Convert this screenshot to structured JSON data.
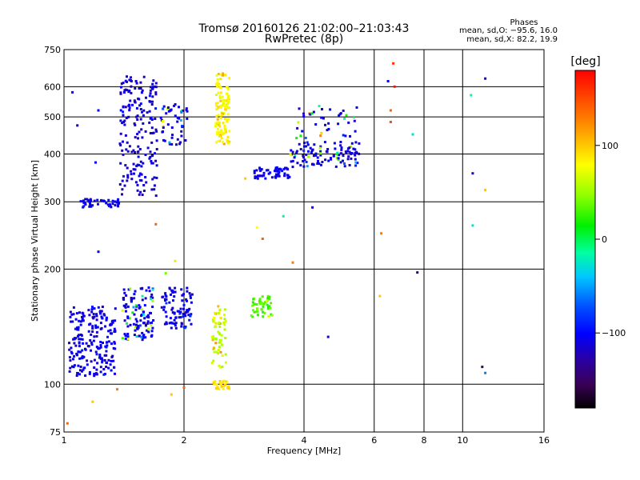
{
  "chart_data": {
    "type": "scatter",
    "title": "Tromsø 20160126 21:02:00–21:03:43",
    "subtitle": "RwPretec (8p)",
    "xlabel": "Frequency [MHz]",
    "ylabel": "Stationary phase Virtual Height [km]",
    "x_scale": "log",
    "y_scale": "log",
    "xlim": [
      1,
      16
    ],
    "ylim": [
      75,
      750
    ],
    "x_ticks": [
      1,
      2,
      4,
      6,
      8,
      10,
      16
    ],
    "x_tick_labels": [
      "1",
      "2",
      "4",
      "6",
      "8",
      "10",
      "16"
    ],
    "y_ticks": [
      75,
      100,
      200,
      300,
      400,
      500,
      600,
      750
    ],
    "y_tick_labels": [
      "75",
      "100",
      "200",
      "300",
      "400",
      "500",
      "600",
      "750"
    ],
    "grid": true,
    "stats": {
      "heading": "Phases",
      "line1": "mean, sd,O: −95.6, 16.0",
      "line2": "mean, sd,X:  82.2, 19.9"
    },
    "colorbar": {
      "label": "[deg]",
      "range": [
        -180,
        180
      ],
      "ticks": [
        -100,
        0,
        100
      ],
      "tick_labels": [
        "−100",
        "0",
        "100"
      ]
    },
    "clusters": [
      {
        "x": [
          1.03,
          1.35
        ],
        "y": [
          105,
          160
        ],
        "phase": [
          -110,
          -90
        ],
        "n": 220
      },
      {
        "x": [
          1.4,
          1.68
        ],
        "y": [
          130,
          180
        ],
        "phase": [
          -110,
          100
        ],
        "n": 120
      },
      {
        "x": [
          1.75,
          2.1
        ],
        "y": [
          140,
          180
        ],
        "phase": [
          -110,
          -80
        ],
        "n": 90
      },
      {
        "x": [
          2.35,
          2.55
        ],
        "y": [
          110,
          160
        ],
        "phase": [
          60,
          130
        ],
        "n": 60
      },
      {
        "x": [
          2.95,
          3.35
        ],
        "y": [
          150,
          170
        ],
        "phase": [
          30,
          80
        ],
        "n": 50
      },
      {
        "x": [
          2.35,
          2.6
        ],
        "y": [
          97,
          102
        ],
        "phase": [
          90,
          110
        ],
        "n": 25
      },
      {
        "x": [
          1.1,
          1.38
        ],
        "y": [
          290,
          305
        ],
        "phase": [
          -110,
          -90
        ],
        "n": 45
      },
      {
        "x": [
          1.38,
          1.72
        ],
        "y": [
          310,
          640
        ],
        "phase": [
          -115,
          -90
        ],
        "n": 190
      },
      {
        "x": [
          1.75,
          2.05
        ],
        "y": [
          420,
          540
        ],
        "phase": [
          -110,
          100
        ],
        "n": 50
      },
      {
        "x": [
          2.4,
          2.6
        ],
        "y": [
          420,
          650
        ],
        "phase": [
          80,
          115
        ],
        "n": 110
      },
      {
        "x": [
          3.0,
          3.7
        ],
        "y": [
          345,
          370
        ],
        "phase": [
          -110,
          -90
        ],
        "n": 60
      },
      {
        "x": [
          3.7,
          5.5
        ],
        "y": [
          370,
          430
        ],
        "phase": [
          -110,
          120
        ],
        "n": 110
      },
      {
        "x": [
          3.8,
          5.5
        ],
        "y": [
          440,
          540
        ],
        "phase": [
          -110,
          140
        ],
        "n": 40
      }
    ],
    "isolated_points": [
      {
        "x": 1.05,
        "y": 580,
        "phase": -110
      },
      {
        "x": 1.08,
        "y": 475,
        "phase": -110
      },
      {
        "x": 1.22,
        "y": 520,
        "phase": -100
      },
      {
        "x": 1.2,
        "y": 380,
        "phase": -100
      },
      {
        "x": 1.52,
        "y": 500,
        "phase": -110
      },
      {
        "x": 1.22,
        "y": 222,
        "phase": -100
      },
      {
        "x": 1.7,
        "y": 262,
        "phase": 140
      },
      {
        "x": 1.8,
        "y": 195,
        "phase": 40
      },
      {
        "x": 1.9,
        "y": 210,
        "phase": 90
      },
      {
        "x": 1.86,
        "y": 94,
        "phase": 100
      },
      {
        "x": 2.0,
        "y": 98,
        "phase": 140
      },
      {
        "x": 1.02,
        "y": 79,
        "phase": 140
      },
      {
        "x": 1.18,
        "y": 90,
        "phase": 100
      },
      {
        "x": 1.36,
        "y": 97,
        "phase": 130
      },
      {
        "x": 2.85,
        "y": 345,
        "phase": 100
      },
      {
        "x": 3.05,
        "y": 257,
        "phase": 80
      },
      {
        "x": 3.15,
        "y": 240,
        "phase": 140
      },
      {
        "x": 3.55,
        "y": 275,
        "phase": -20
      },
      {
        "x": 3.75,
        "y": 208,
        "phase": 130
      },
      {
        "x": 4.2,
        "y": 290,
        "phase": -110
      },
      {
        "x": 4.6,
        "y": 133,
        "phase": -110
      },
      {
        "x": 6.25,
        "y": 248,
        "phase": 130
      },
      {
        "x": 6.2,
        "y": 170,
        "phase": 100
      },
      {
        "x": 6.5,
        "y": 620,
        "phase": -110
      },
      {
        "x": 6.6,
        "y": 520,
        "phase": 140
      },
      {
        "x": 6.75,
        "y": 600,
        "phase": 170
      },
      {
        "x": 6.7,
        "y": 690,
        "phase": 160
      },
      {
        "x": 6.6,
        "y": 485,
        "phase": 150
      },
      {
        "x": 7.5,
        "y": 450,
        "phase": -30
      },
      {
        "x": 7.7,
        "y": 196,
        "phase": -140
      },
      {
        "x": 10.5,
        "y": 570,
        "phase": -20
      },
      {
        "x": 10.6,
        "y": 356,
        "phase": -110
      },
      {
        "x": 10.6,
        "y": 260,
        "phase": -30
      },
      {
        "x": 11.4,
        "y": 322,
        "phase": 100
      },
      {
        "x": 11.4,
        "y": 630,
        "phase": -110
      },
      {
        "x": 11.2,
        "y": 111,
        "phase": -150
      },
      {
        "x": 11.4,
        "y": 107,
        "phase": -60
      }
    ]
  }
}
